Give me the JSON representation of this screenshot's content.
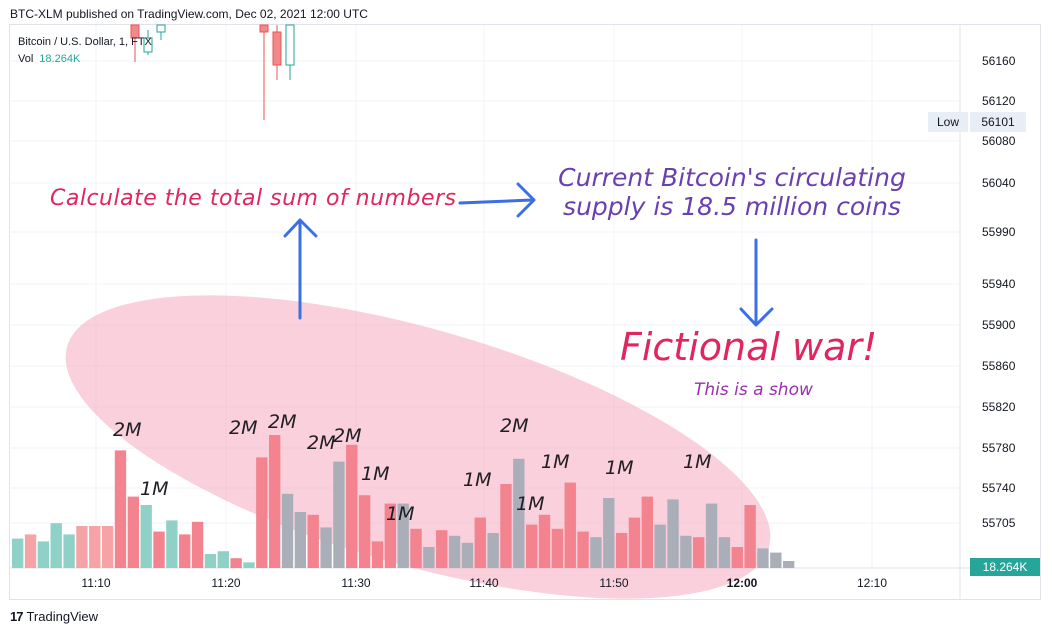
{
  "header": {
    "published": "BTC-XLM published on TradingView.com, Dec 02, 2021 12:00 UTC"
  },
  "legend": {
    "symbol": "Bitcoin / U.S. Dollar, 1, FTX",
    "vol_label": "Vol",
    "vol_value": "18.264K"
  },
  "price_axis": {
    "ticks": [
      "56160",
      "56120",
      "56080",
      "56040",
      "55990",
      "55940",
      "55900",
      "55860",
      "55820",
      "55780",
      "55740",
      "55705"
    ],
    "low_label": "Low",
    "low_value": "56101",
    "volume_tag": "18.264K"
  },
  "time_axis": {
    "ticks": [
      "11:10",
      "11:20",
      "11:30",
      "11:40",
      "11:50",
      "12:00",
      "12:10"
    ],
    "bold_tick": "12:00"
  },
  "annotations": {
    "calc": "Calculate the total sum of numbers",
    "supply": "Current Bitcoin's circulating supply is 18.5 million coins",
    "war": "Fictional war!",
    "show": "This is a show"
  },
  "volume_labels": [
    "2M",
    "1M",
    "2M",
    "2M",
    "2M",
    "2M",
    "1M",
    "1M",
    "1M",
    "2M",
    "1M",
    "1M",
    "1M",
    "1M"
  ],
  "volume_bars": [
    {
      "v": 0.21,
      "c": "up"
    },
    {
      "v": 0.24,
      "c": "dn"
    },
    {
      "v": 0.19,
      "c": "up"
    },
    {
      "v": 0.32,
      "c": "up"
    },
    {
      "v": 0.24,
      "c": "up"
    },
    {
      "v": 0.3,
      "c": "dn"
    },
    {
      "v": 0.3,
      "c": "dn"
    },
    {
      "v": 0.3,
      "c": "dn"
    },
    {
      "v": 0.84,
      "c": "dn"
    },
    {
      "v": 0.51,
      "c": "dn"
    },
    {
      "v": 0.45,
      "c": "up"
    },
    {
      "v": 0.26,
      "c": "dn"
    },
    {
      "v": 0.34,
      "c": "up"
    },
    {
      "v": 0.24,
      "c": "dn"
    },
    {
      "v": 0.33,
      "c": "dn"
    },
    {
      "v": 0.1,
      "c": "up"
    },
    {
      "v": 0.12,
      "c": "up"
    },
    {
      "v": 0.07,
      "c": "dn"
    },
    {
      "v": 0.04,
      "c": "up"
    },
    {
      "v": 0.79,
      "c": "dn"
    },
    {
      "v": 0.95,
      "c": "dn"
    },
    {
      "v": 0.53,
      "c": "gr"
    },
    {
      "v": 0.4,
      "c": "gr"
    },
    {
      "v": 0.38,
      "c": "dn"
    },
    {
      "v": 0.29,
      "c": "gr"
    },
    {
      "v": 0.76,
      "c": "gr"
    },
    {
      "v": 0.88,
      "c": "dn"
    },
    {
      "v": 0.52,
      "c": "dn"
    },
    {
      "v": 0.19,
      "c": "dn"
    },
    {
      "v": 0.46,
      "c": "dn"
    },
    {
      "v": 0.46,
      "c": "gr"
    },
    {
      "v": 0.28,
      "c": "dn"
    },
    {
      "v": 0.15,
      "c": "gr"
    },
    {
      "v": 0.27,
      "c": "dn"
    },
    {
      "v": 0.23,
      "c": "gr"
    },
    {
      "v": 0.18,
      "c": "gr"
    },
    {
      "v": 0.36,
      "c": "dn"
    },
    {
      "v": 0.25,
      "c": "gr"
    },
    {
      "v": 0.6,
      "c": "dn"
    },
    {
      "v": 0.78,
      "c": "gr"
    },
    {
      "v": 0.31,
      "c": "dn"
    },
    {
      "v": 0.38,
      "c": "dn"
    },
    {
      "v": 0.28,
      "c": "dn"
    },
    {
      "v": 0.61,
      "c": "dn"
    },
    {
      "v": 0.26,
      "c": "dn"
    },
    {
      "v": 0.22,
      "c": "gr"
    },
    {
      "v": 0.5,
      "c": "gr"
    },
    {
      "v": 0.25,
      "c": "dn"
    },
    {
      "v": 0.36,
      "c": "dn"
    },
    {
      "v": 0.51,
      "c": "dn"
    },
    {
      "v": 0.31,
      "c": "gr"
    },
    {
      "v": 0.49,
      "c": "gr"
    },
    {
      "v": 0.23,
      "c": "gr"
    },
    {
      "v": 0.22,
      "c": "dn"
    },
    {
      "v": 0.46,
      "c": "gr"
    },
    {
      "v": 0.22,
      "c": "gr"
    },
    {
      "v": 0.15,
      "c": "dn"
    },
    {
      "v": 0.45,
      "c": "dn"
    },
    {
      "v": 0.14,
      "c": "gr"
    },
    {
      "v": 0.11,
      "c": "gr"
    },
    {
      "v": 0.05,
      "c": "gr"
    }
  ],
  "colors": {
    "up": "#8fd1c6",
    "dn": "#f2838f",
    "gr": "#a9aeb9",
    "faded_dn": "#f5a3a7",
    "ellipse": "#f4a9bd"
  },
  "footer": {
    "brand": "TradingView"
  }
}
